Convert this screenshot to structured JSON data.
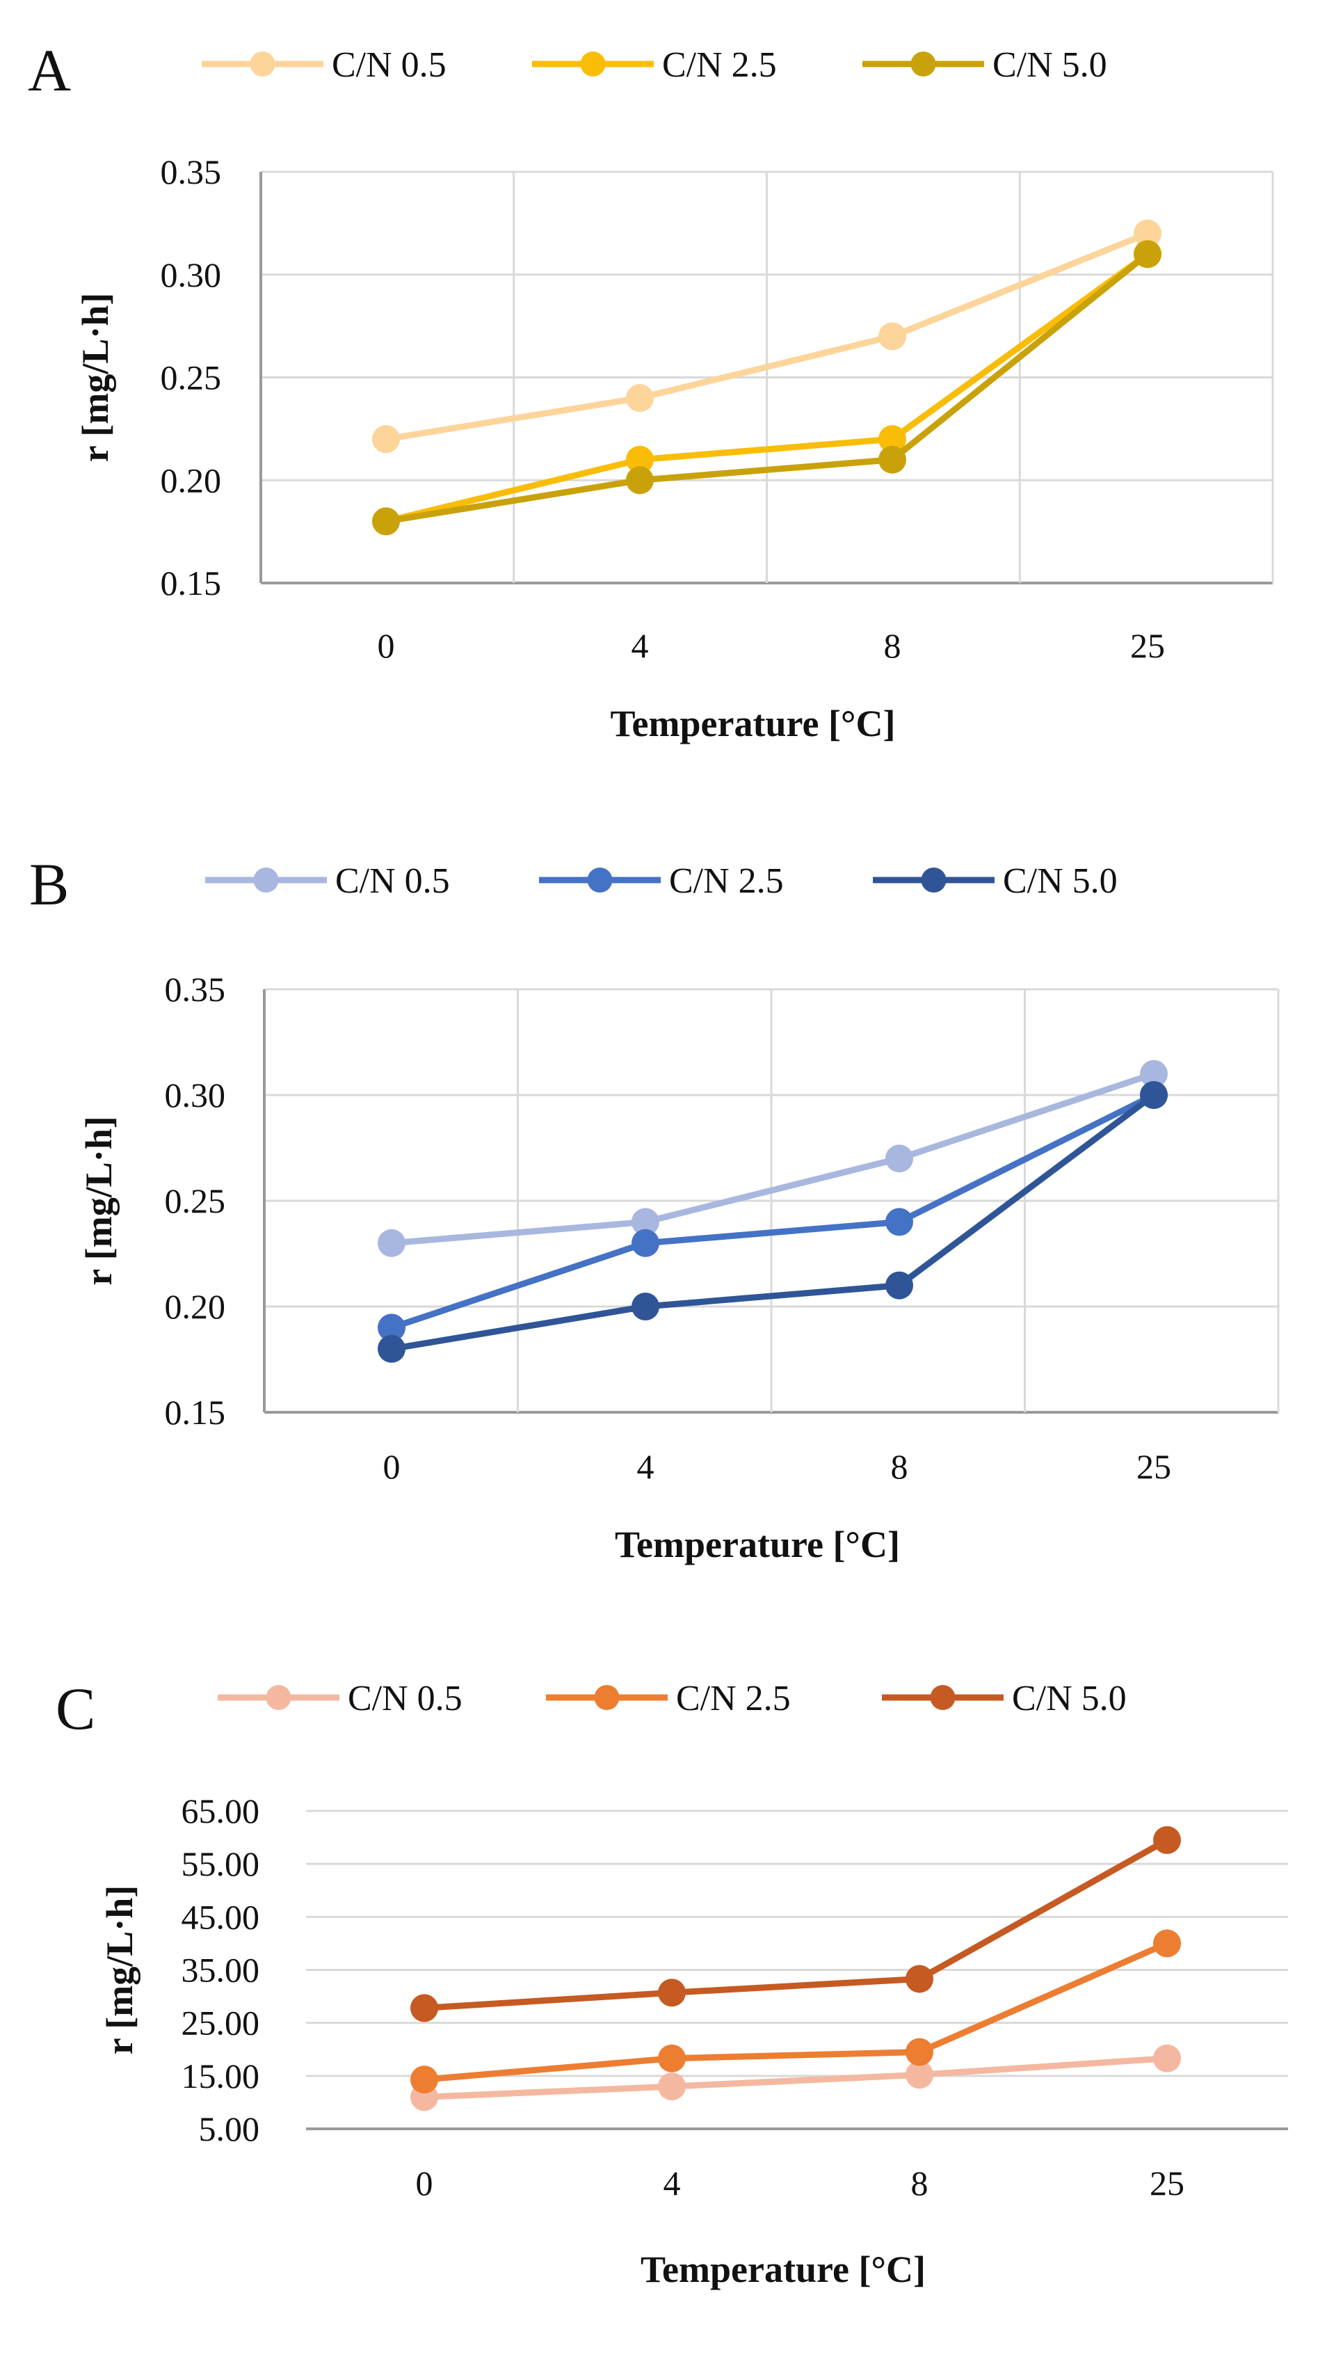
{
  "chart_data": [
    {
      "type": "line",
      "panel_label": "A",
      "categories": [
        "0",
        "4",
        "8",
        "25"
      ],
      "xlabel": "Temperature [°C]",
      "ylabel": "r [mg/L·h]",
      "ylim": [
        0.15,
        0.35
      ],
      "yticks": [
        0.15,
        0.2,
        0.25,
        0.3,
        0.35
      ],
      "ytick_labels": [
        "0.15",
        "0.20",
        "0.25",
        "0.30",
        "0.35"
      ],
      "grid": "both",
      "legend": "top",
      "series": [
        {
          "name": "C/N 0.5",
          "color": "#FDD49A",
          "values": [
            0.22,
            0.24,
            0.27,
            0.32
          ]
        },
        {
          "name": "C/N 2.5",
          "color": "#F9BD08",
          "values": [
            0.18,
            0.21,
            0.22,
            0.31
          ]
        },
        {
          "name": "C/N 5.0",
          "color": "#C9A20B",
          "values": [
            0.18,
            0.2,
            0.21,
            0.31
          ]
        }
      ]
    },
    {
      "type": "line",
      "panel_label": "B",
      "categories": [
        "0",
        "4",
        "8",
        "25"
      ],
      "xlabel": "Temperature [°C]",
      "ylabel": "r [mg/L·h]",
      "ylim": [
        0.15,
        0.35
      ],
      "yticks": [
        0.15,
        0.2,
        0.25,
        0.3,
        0.35
      ],
      "ytick_labels": [
        "0.15",
        "0.20",
        "0.25",
        "0.30",
        "0.35"
      ],
      "grid": "both",
      "legend": "top",
      "series": [
        {
          "name": "C/N 0.5",
          "color": "#A8B7DF",
          "values": [
            0.23,
            0.24,
            0.27,
            0.31
          ]
        },
        {
          "name": "C/N 2.5",
          "color": "#4472C4",
          "values": [
            0.19,
            0.23,
            0.24,
            0.3
          ]
        },
        {
          "name": "C/N 5.0",
          "color": "#2F5597",
          "values": [
            0.18,
            0.2,
            0.21,
            0.3
          ]
        }
      ]
    },
    {
      "type": "line",
      "panel_label": "C",
      "categories": [
        "0",
        "4",
        "8",
        "25"
      ],
      "xlabel": "Temperature [°C]",
      "ylabel": "r [mg/L·h]",
      "ylim": [
        5,
        65
      ],
      "yticks": [
        5,
        15,
        25,
        35,
        45,
        55,
        65
      ],
      "ytick_labels": [
        "5.00",
        "15.00",
        "25.00",
        "35.00",
        "45.00",
        "55.00",
        "65.00"
      ],
      "grid": "horizontal",
      "legend": "top",
      "series": [
        {
          "name": "C/N 0.5",
          "color": "#F4B8A0",
          "values": [
            11.0,
            13.0,
            15.2,
            18.3
          ]
        },
        {
          "name": "C/N 2.5",
          "color": "#ED7D31",
          "values": [
            14.3,
            18.3,
            19.5,
            40.0
          ]
        },
        {
          "name": "C/N 5.0",
          "color": "#C55A22",
          "values": [
            27.8,
            30.7,
            33.3,
            59.5
          ]
        }
      ]
    }
  ]
}
